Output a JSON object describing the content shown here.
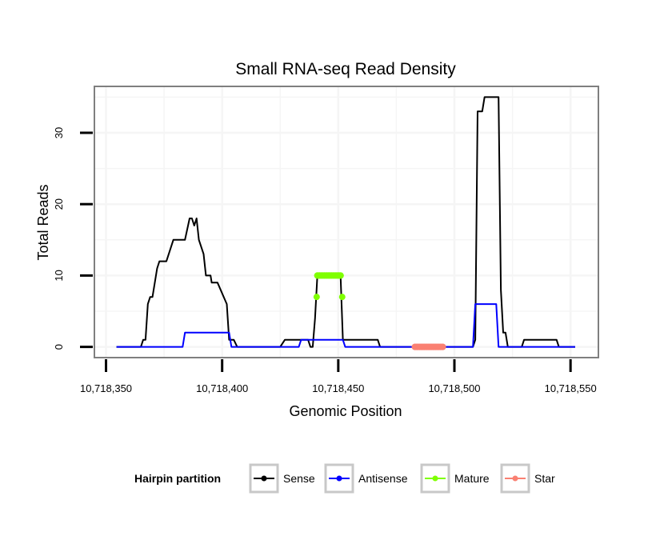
{
  "chart_data": {
    "type": "line",
    "title": "Small RNA-seq Read Density",
    "xlabel": "Genomic Position",
    "ylabel": "Total Reads",
    "xlim": [
      10718345,
      10718562
    ],
    "ylim": [
      -1.5,
      36.5
    ],
    "x_ticks": [
      10718350,
      10718400,
      10718450,
      10718500,
      10718550
    ],
    "x_tick_labels": [
      "10,718,350",
      "10,718,400",
      "10,718,450",
      "10,718,500",
      "10,718,550"
    ],
    "y_ticks": [
      0,
      10,
      20,
      30
    ],
    "y_tick_labels": [
      "0",
      "10",
      "20",
      "30"
    ],
    "grid": true,
    "legend": {
      "title": "Hairpin partition",
      "placement": "bottom"
    },
    "series": [
      {
        "name": "Sense",
        "color": "#000000",
        "style": "line",
        "x": [
          10718354.5,
          10718365,
          10718366,
          10718367,
          10718368,
          10718369,
          10718370,
          10718372,
          10718373,
          10718376,
          10718379,
          10718384,
          10718386,
          10718387,
          10718388,
          10718389,
          10718390,
          10718392,
          10718393,
          10718395,
          10718395.5,
          10718398,
          10718402,
          10718403,
          10718405,
          10718406.5,
          10718425,
          10718427,
          10718432,
          10718437,
          10718438,
          10718439,
          10718440,
          10718441,
          10718451,
          10718452,
          10718467,
          10718468,
          10718508,
          10718509,
          10718510,
          10718512,
          10718513,
          10718519,
          10718520,
          10718521,
          10718522,
          10718523,
          10718529,
          10718530,
          10718544,
          10718545,
          10718552
        ],
        "y": [
          0,
          0,
          1,
          1,
          6,
          7,
          7,
          11,
          12,
          12,
          15,
          15,
          18,
          18,
          17,
          18,
          15,
          13,
          10,
          10,
          9,
          9,
          6,
          1,
          1,
          0,
          0,
          1,
          1,
          1,
          0,
          0,
          4,
          10,
          10,
          1,
          1,
          0,
          0,
          1,
          33,
          33,
          35,
          35,
          8,
          2,
          2,
          0,
          0,
          1,
          1,
          0,
          0
        ]
      },
      {
        "name": "Antisense",
        "color": "#0000ff",
        "style": "line",
        "x": [
          10718354.5,
          10718383,
          10718384,
          10718403,
          10718404,
          10718433,
          10718434,
          10718452,
          10718453,
          10718508,
          10718509,
          10718518,
          10718519,
          10718552
        ],
        "y": [
          0,
          0,
          2,
          2,
          0,
          0,
          1,
          1,
          0,
          0,
          6,
          6,
          0,
          0
        ]
      },
      {
        "name": "Mature",
        "color": "#7fff00",
        "style": "points",
        "x": [
          10718440.7,
          10718441,
          10718442,
          10718443,
          10718444,
          10718445,
          10718446,
          10718447,
          10718448,
          10718449,
          10718450,
          10718451,
          10718451.7
        ],
        "y": [
          7,
          10,
          10,
          10,
          10,
          10,
          10,
          10,
          10,
          10,
          10,
          10,
          7
        ]
      },
      {
        "name": "Star",
        "color": "#fa8072",
        "style": "points",
        "x": [
          10718483,
          10718484,
          10718485,
          10718486,
          10718487,
          10718488,
          10718489,
          10718490,
          10718491,
          10718492,
          10718493,
          10718494,
          10718495
        ],
        "y": [
          0,
          0,
          0,
          0,
          0,
          0,
          0,
          0,
          0,
          0,
          0,
          0,
          0
        ]
      }
    ]
  }
}
